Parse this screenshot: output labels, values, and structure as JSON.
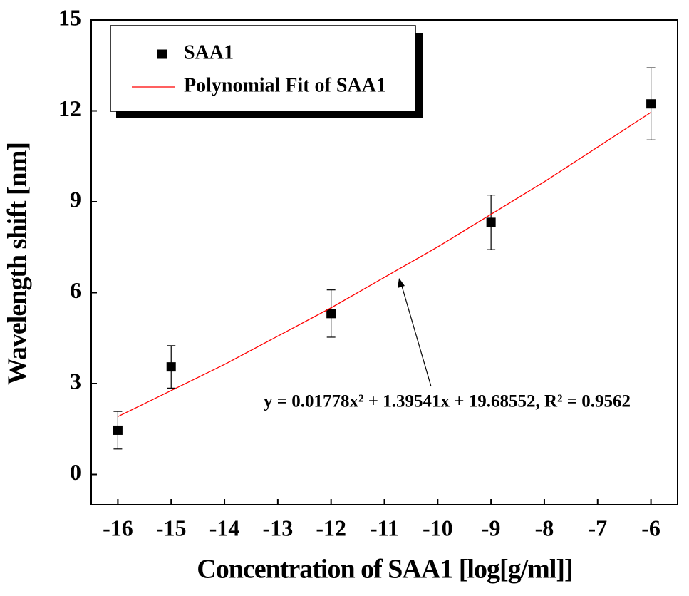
{
  "chart_data": {
    "type": "scatter",
    "x_label": "Concentration of SAA1 [log[g/ml]]",
    "y_label": "Wavelength shift [nm]",
    "xlim": [
      -16.5,
      -5.5
    ],
    "ylim": [
      -1,
      15
    ],
    "xticks": [
      -16,
      -15,
      -14,
      -13,
      -12,
      -11,
      -10,
      -9,
      -8,
      -7,
      -6
    ],
    "yticks": [
      0,
      3,
      6,
      9,
      12,
      15
    ],
    "legend": "top-left",
    "series": [
      {
        "name": "SAA1",
        "color": "#000000",
        "x": [
          -16,
          -15,
          -12,
          -9,
          -6
        ],
        "values": [
          1.46,
          3.55,
          5.31,
          8.32,
          12.23
        ],
        "errors": [
          0.62,
          0.7,
          0.78,
          0.9,
          1.19
        ]
      },
      {
        "name": "Polynomial Fit of SAA1",
        "color": "#ff0000",
        "type": "line",
        "x": [
          -16,
          -14,
          -12,
          -10,
          -8,
          -6
        ],
        "values": [
          1.91,
          3.63,
          5.5,
          7.51,
          9.66,
          11.95
        ]
      }
    ],
    "annotation": "y = 0.01778x² + 1.39541x + 19.68552, R² = 0.9562"
  }
}
